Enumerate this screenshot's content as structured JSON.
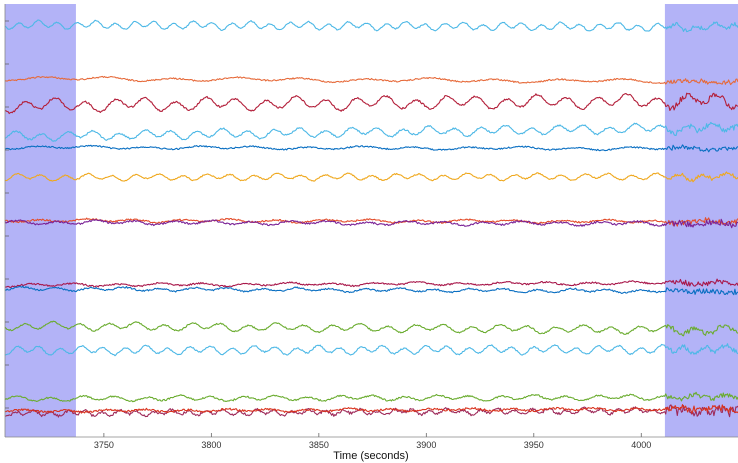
{
  "chart_data": {
    "type": "line",
    "title": "",
    "xlabel": "Time (seconds)",
    "ylabel": "",
    "xlim": [
      3704,
      4045
    ],
    "x_ticks": [
      3750,
      3800,
      3850,
      3900,
      3950,
      4000
    ],
    "grid": false,
    "legend": "none",
    "highlighted_intervals": [
      {
        "x0": 3704,
        "x1": 3737,
        "color": "#b3b3f7"
      },
      {
        "x0": 4011,
        "x1": 4045,
        "color": "#b3b3f7"
      }
    ],
    "series": [
      {
        "color": "#4db8e6",
        "offset": 26,
        "trend": 10,
        "amp": 3.0,
        "noise": 0.6,
        "period": 9,
        "phase": 0.2
      },
      {
        "color": "#e66a3a",
        "offset": 80,
        "trend": 12,
        "amp": 1.5,
        "noise": 0.7,
        "period": 30,
        "phase": 1.0
      },
      {
        "color": "#b31f3a",
        "offset": 103,
        "trend": -20,
        "amp": 5.0,
        "noise": 0.9,
        "period": 14,
        "phase": 0.5
      },
      {
        "color": "#4db8e6",
        "offset": 132,
        "trend": -35,
        "amp": 3.5,
        "noise": 0.8,
        "period": 12,
        "phase": 2.0
      },
      {
        "color": "#0a6fc2",
        "offset": 148,
        "trend": 6,
        "amp": 1.2,
        "noise": 0.7,
        "period": 25,
        "phase": 0.8
      },
      {
        "color": "#efa81e",
        "offset": 177,
        "trend": -3,
        "amp": 2.5,
        "noise": 0.6,
        "period": 11,
        "phase": 1.4
      },
      {
        "color": "#e34d2b",
        "offset": 221,
        "trend": 5,
        "amp": 1.2,
        "noise": 0.8,
        "period": 22,
        "phase": 0.1
      },
      {
        "color": "#7a2296",
        "offset": 223,
        "trend": 6,
        "amp": 1.5,
        "noise": 0.9,
        "period": 18,
        "phase": 2.5
      },
      {
        "color": "#a8174a",
        "offset": 284,
        "trend": -9,
        "amp": 1.2,
        "noise": 0.8,
        "period": 20,
        "phase": 0.9
      },
      {
        "color": "#0a6fc2",
        "offset": 290,
        "trend": 10,
        "amp": 1.4,
        "noise": 0.8,
        "period": 16,
        "phase": 1.7
      },
      {
        "color": "#6aac2f",
        "offset": 328,
        "trend": 18,
        "amp": 3.0,
        "noise": 0.7,
        "period": 13,
        "phase": 0.3
      },
      {
        "color": "#4db8e6",
        "offset": 350,
        "trend": -4,
        "amp": 3.2,
        "noise": 0.7,
        "period": 10,
        "phase": 1.1
      },
      {
        "color": "#6aac2f",
        "offset": 398,
        "trend": -6,
        "amp": 2.0,
        "noise": 0.8,
        "period": 15,
        "phase": 2.2
      },
      {
        "color": "#9e2a5a",
        "offset": 412,
        "trend": -12,
        "amp": 2.0,
        "noise": 1.3,
        "period": 8,
        "phase": 0.6
      },
      {
        "color": "#d9331e",
        "offset": 410,
        "trend": -8,
        "amp": 1.0,
        "noise": 1.0,
        "period": 19,
        "phase": 1.9
      }
    ]
  }
}
